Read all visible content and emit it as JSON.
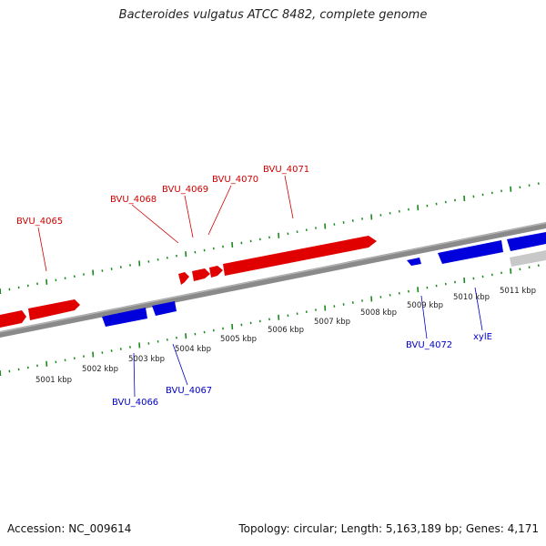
{
  "title": "Bacteroides vulgatus ATCC 8482, complete genome",
  "footer": {
    "accession": "Accession: NC_009614",
    "topology": "Topology: circular; Length: 5,163,189 bp; Genes: 4,171"
  },
  "colors": {
    "forward_gene": "#e00000",
    "reverse_gene": "#0000dd",
    "backbone": "#8c8c8c",
    "ticks": "#1a8a1a",
    "other_feature": "#c8c8c8"
  },
  "scale_labels": [
    "5001 kbp",
    "5002 kbp",
    "5003 kbp",
    "5004 kbp",
    "5005 kbp",
    "5006 kbp",
    "5007 kbp",
    "5008 kbp",
    "5009 kbp",
    "5010 kbp",
    "5011 kbp"
  ],
  "forward_gene_labels": [
    "BVU_4065",
    "BVU_4068",
    "BVU_4069",
    "BVU_4070",
    "BVU_4071"
  ],
  "reverse_gene_labels": [
    "BVU_4066",
    "BVU_4067",
    "BVU_4072",
    "xylE"
  ]
}
